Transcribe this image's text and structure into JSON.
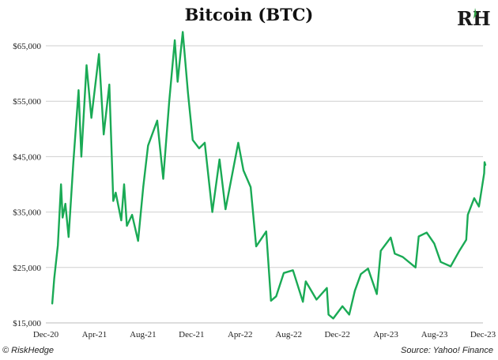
{
  "header": {
    "title": "Bitcoin (BTC)",
    "logo_text": "RH"
  },
  "footer": {
    "copyright": "© RiskHedge",
    "source": "Source: Yahoo! Finance"
  },
  "colors": {
    "line": "#1aaa55",
    "grid": "#cfcfcf",
    "logo_accent": "#2ea043"
  },
  "chart_data": {
    "type": "line",
    "title": "Bitcoin (BTC)",
    "xlabel": "",
    "ylabel": "",
    "x_ticks": [
      "Dec-20",
      "Apr-21",
      "Aug-21",
      "Dec-21",
      "Apr-22",
      "Aug-22",
      "Dec-22",
      "Apr-23",
      "Aug-23",
      "Dec-23"
    ],
    "y_ticks": [
      "$15,000",
      "$25,000",
      "$35,000",
      "$45,000",
      "$55,000",
      "$65,000"
    ],
    "ylim": [
      15000,
      65000
    ],
    "xlim": [
      "2020-12-01",
      "2023-12-01"
    ],
    "grid": "horizontal",
    "series": [
      {
        "values": [
          [
            "2020-12-17",
            18500
          ],
          [
            "2020-12-22",
            23000
          ],
          [
            "2020-12-31",
            29000
          ],
          [
            "2021-01-08",
            40000
          ],
          [
            "2021-01-12",
            34000
          ],
          [
            "2021-01-19",
            36500
          ],
          [
            "2021-01-27",
            30500
          ],
          [
            "2021-02-08",
            44000
          ],
          [
            "2021-02-21",
            57000
          ],
          [
            "2021-02-28",
            45000
          ],
          [
            "2021-03-13",
            61500
          ],
          [
            "2021-03-25",
            52000
          ],
          [
            "2021-04-13",
            63500
          ],
          [
            "2021-04-25",
            49000
          ],
          [
            "2021-05-09",
            58000
          ],
          [
            "2021-05-19",
            37000
          ],
          [
            "2021-05-25",
            38500
          ],
          [
            "2021-06-08",
            33500
          ],
          [
            "2021-06-15",
            40000
          ],
          [
            "2021-06-22",
            32500
          ],
          [
            "2021-07-05",
            34500
          ],
          [
            "2021-07-20",
            29800
          ],
          [
            "2021-08-02",
            39500
          ],
          [
            "2021-08-14",
            47000
          ],
          [
            "2021-09-06",
            51500
          ],
          [
            "2021-09-21",
            41000
          ],
          [
            "2021-10-06",
            55000
          ],
          [
            "2021-10-20",
            66000
          ],
          [
            "2021-10-27",
            58500
          ],
          [
            "2021-11-09",
            67500
          ],
          [
            "2021-11-22",
            56500
          ],
          [
            "2021-12-04",
            48000
          ],
          [
            "2021-12-20",
            46500
          ],
          [
            "2022-01-03",
            47500
          ],
          [
            "2022-01-22",
            35000
          ],
          [
            "2022-02-09",
            44500
          ],
          [
            "2022-02-24",
            35500
          ],
          [
            "2022-03-28",
            47500
          ],
          [
            "2022-04-10",
            42500
          ],
          [
            "2022-04-28",
            39500
          ],
          [
            "2022-05-12",
            28800
          ],
          [
            "2022-06-06",
            31500
          ],
          [
            "2022-06-18",
            19000
          ],
          [
            "2022-07-01",
            19800
          ],
          [
            "2022-07-20",
            24000
          ],
          [
            "2022-08-12",
            24500
          ],
          [
            "2022-09-06",
            18800
          ],
          [
            "2022-09-13",
            22500
          ],
          [
            "2022-10-10",
            19200
          ],
          [
            "2022-11-05",
            21300
          ],
          [
            "2022-11-09",
            16500
          ],
          [
            "2022-11-21",
            15800
          ],
          [
            "2022-12-14",
            18000
          ],
          [
            "2022-12-31",
            16500
          ],
          [
            "2023-01-14",
            20800
          ],
          [
            "2023-01-29",
            23800
          ],
          [
            "2023-02-16",
            24800
          ],
          [
            "2023-03-10",
            20200
          ],
          [
            "2023-03-20",
            28000
          ],
          [
            "2023-04-14",
            30400
          ],
          [
            "2023-04-24",
            27500
          ],
          [
            "2023-05-14",
            26900
          ],
          [
            "2023-06-15",
            25000
          ],
          [
            "2023-06-23",
            30600
          ],
          [
            "2023-07-13",
            31300
          ],
          [
            "2023-08-01",
            29300
          ],
          [
            "2023-08-17",
            26000
          ],
          [
            "2023-09-11",
            25200
          ],
          [
            "2023-10-02",
            27900
          ],
          [
            "2023-10-20",
            30000
          ],
          [
            "2023-10-24",
            34500
          ],
          [
            "2023-11-09",
            37500
          ],
          [
            "2023-11-21",
            36000
          ],
          [
            "2023-12-04",
            42000
          ],
          [
            "2023-12-05",
            44000
          ],
          [
            "2023-12-07",
            43500
          ]
        ]
      }
    ]
  }
}
